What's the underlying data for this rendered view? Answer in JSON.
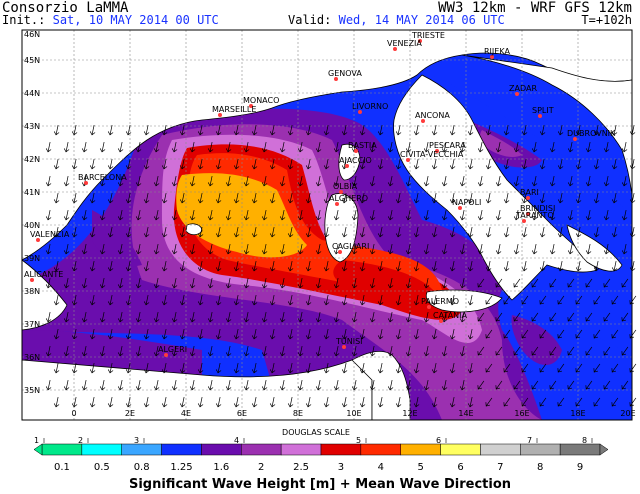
{
  "header": {
    "org": "Consorzio LaMMA",
    "init_label": "Init.:",
    "init_value": "Sat, 10 MAY 2014  00 UTC",
    "model": "WW3 12km - WRF GFS 12km",
    "valid_label": "Valid:",
    "valid_value": "Wed, 14 MAY 2014  06 UTC",
    "step": "T=+102h"
  },
  "axes": {
    "lat_labels": [
      "46N",
      "45N",
      "44N",
      "43N",
      "42N",
      "41N",
      "40N",
      "39N",
      "38N",
      "37N",
      "36N",
      "35N"
    ],
    "lon_labels": [
      "0",
      "2E",
      "4E",
      "6E",
      "8E",
      "10E",
      "12E",
      "14E",
      "16E",
      "18E",
      "20E"
    ]
  },
  "cities": [
    {
      "name": "TRIESTE"
    },
    {
      "name": "VENEZIA"
    },
    {
      "name": "RIJEKA"
    },
    {
      "name": "ZADAR"
    },
    {
      "name": "GENOVA"
    },
    {
      "name": "MONACO"
    },
    {
      "name": "MARSEILLE"
    },
    {
      "name": "LIVORNO"
    },
    {
      "name": "ANCONA"
    },
    {
      "name": "SPLIT"
    },
    {
      "name": "DUBROVNIK"
    },
    {
      "name": "PESCARA"
    },
    {
      "name": "BASTIA"
    },
    {
      "name": "AJACCIO"
    },
    {
      "name": "CIVITA-VECCHIA"
    },
    {
      "name": "BARCELONA"
    },
    {
      "name": "OLBIA"
    },
    {
      "name": "ALGHERO"
    },
    {
      "name": "BARI"
    },
    {
      "name": "NAPOLI"
    },
    {
      "name": "BRINDISI"
    },
    {
      "name": "TARANTO"
    },
    {
      "name": "VALENCIA"
    },
    {
      "name": "CAGLIARI"
    },
    {
      "name": "ALICANTE"
    },
    {
      "name": "PALERMO"
    },
    {
      "name": "CATANIA"
    },
    {
      "name": "TUNISI"
    },
    {
      "name": "ALGERI"
    }
  ],
  "scale": {
    "title": "DOUGLAS SCALE",
    "douglas_numbers": [
      "1",
      "2",
      "3",
      "4",
      "5",
      "6",
      "7",
      "8"
    ],
    "thresholds": [
      "0.1",
      "0.5",
      "0.8",
      "1.25",
      "1.6",
      "2",
      "2.5",
      "3",
      "4",
      "5",
      "6",
      "7",
      "8",
      "9"
    ],
    "colors": [
      "#00e88a",
      "#00ffff",
      "#3aa6ff",
      "#1030ff",
      "#6a0dad",
      "#9b30b0",
      "#d070d8",
      "#e00000",
      "#ff2a00",
      "#ffb000",
      "#ffff60",
      "#d0d0d0",
      "#b0b0b0",
      "#7a7a7a"
    ],
    "legend_title": "Significant Wave Height [m] + Mean Wave Direction"
  }
}
